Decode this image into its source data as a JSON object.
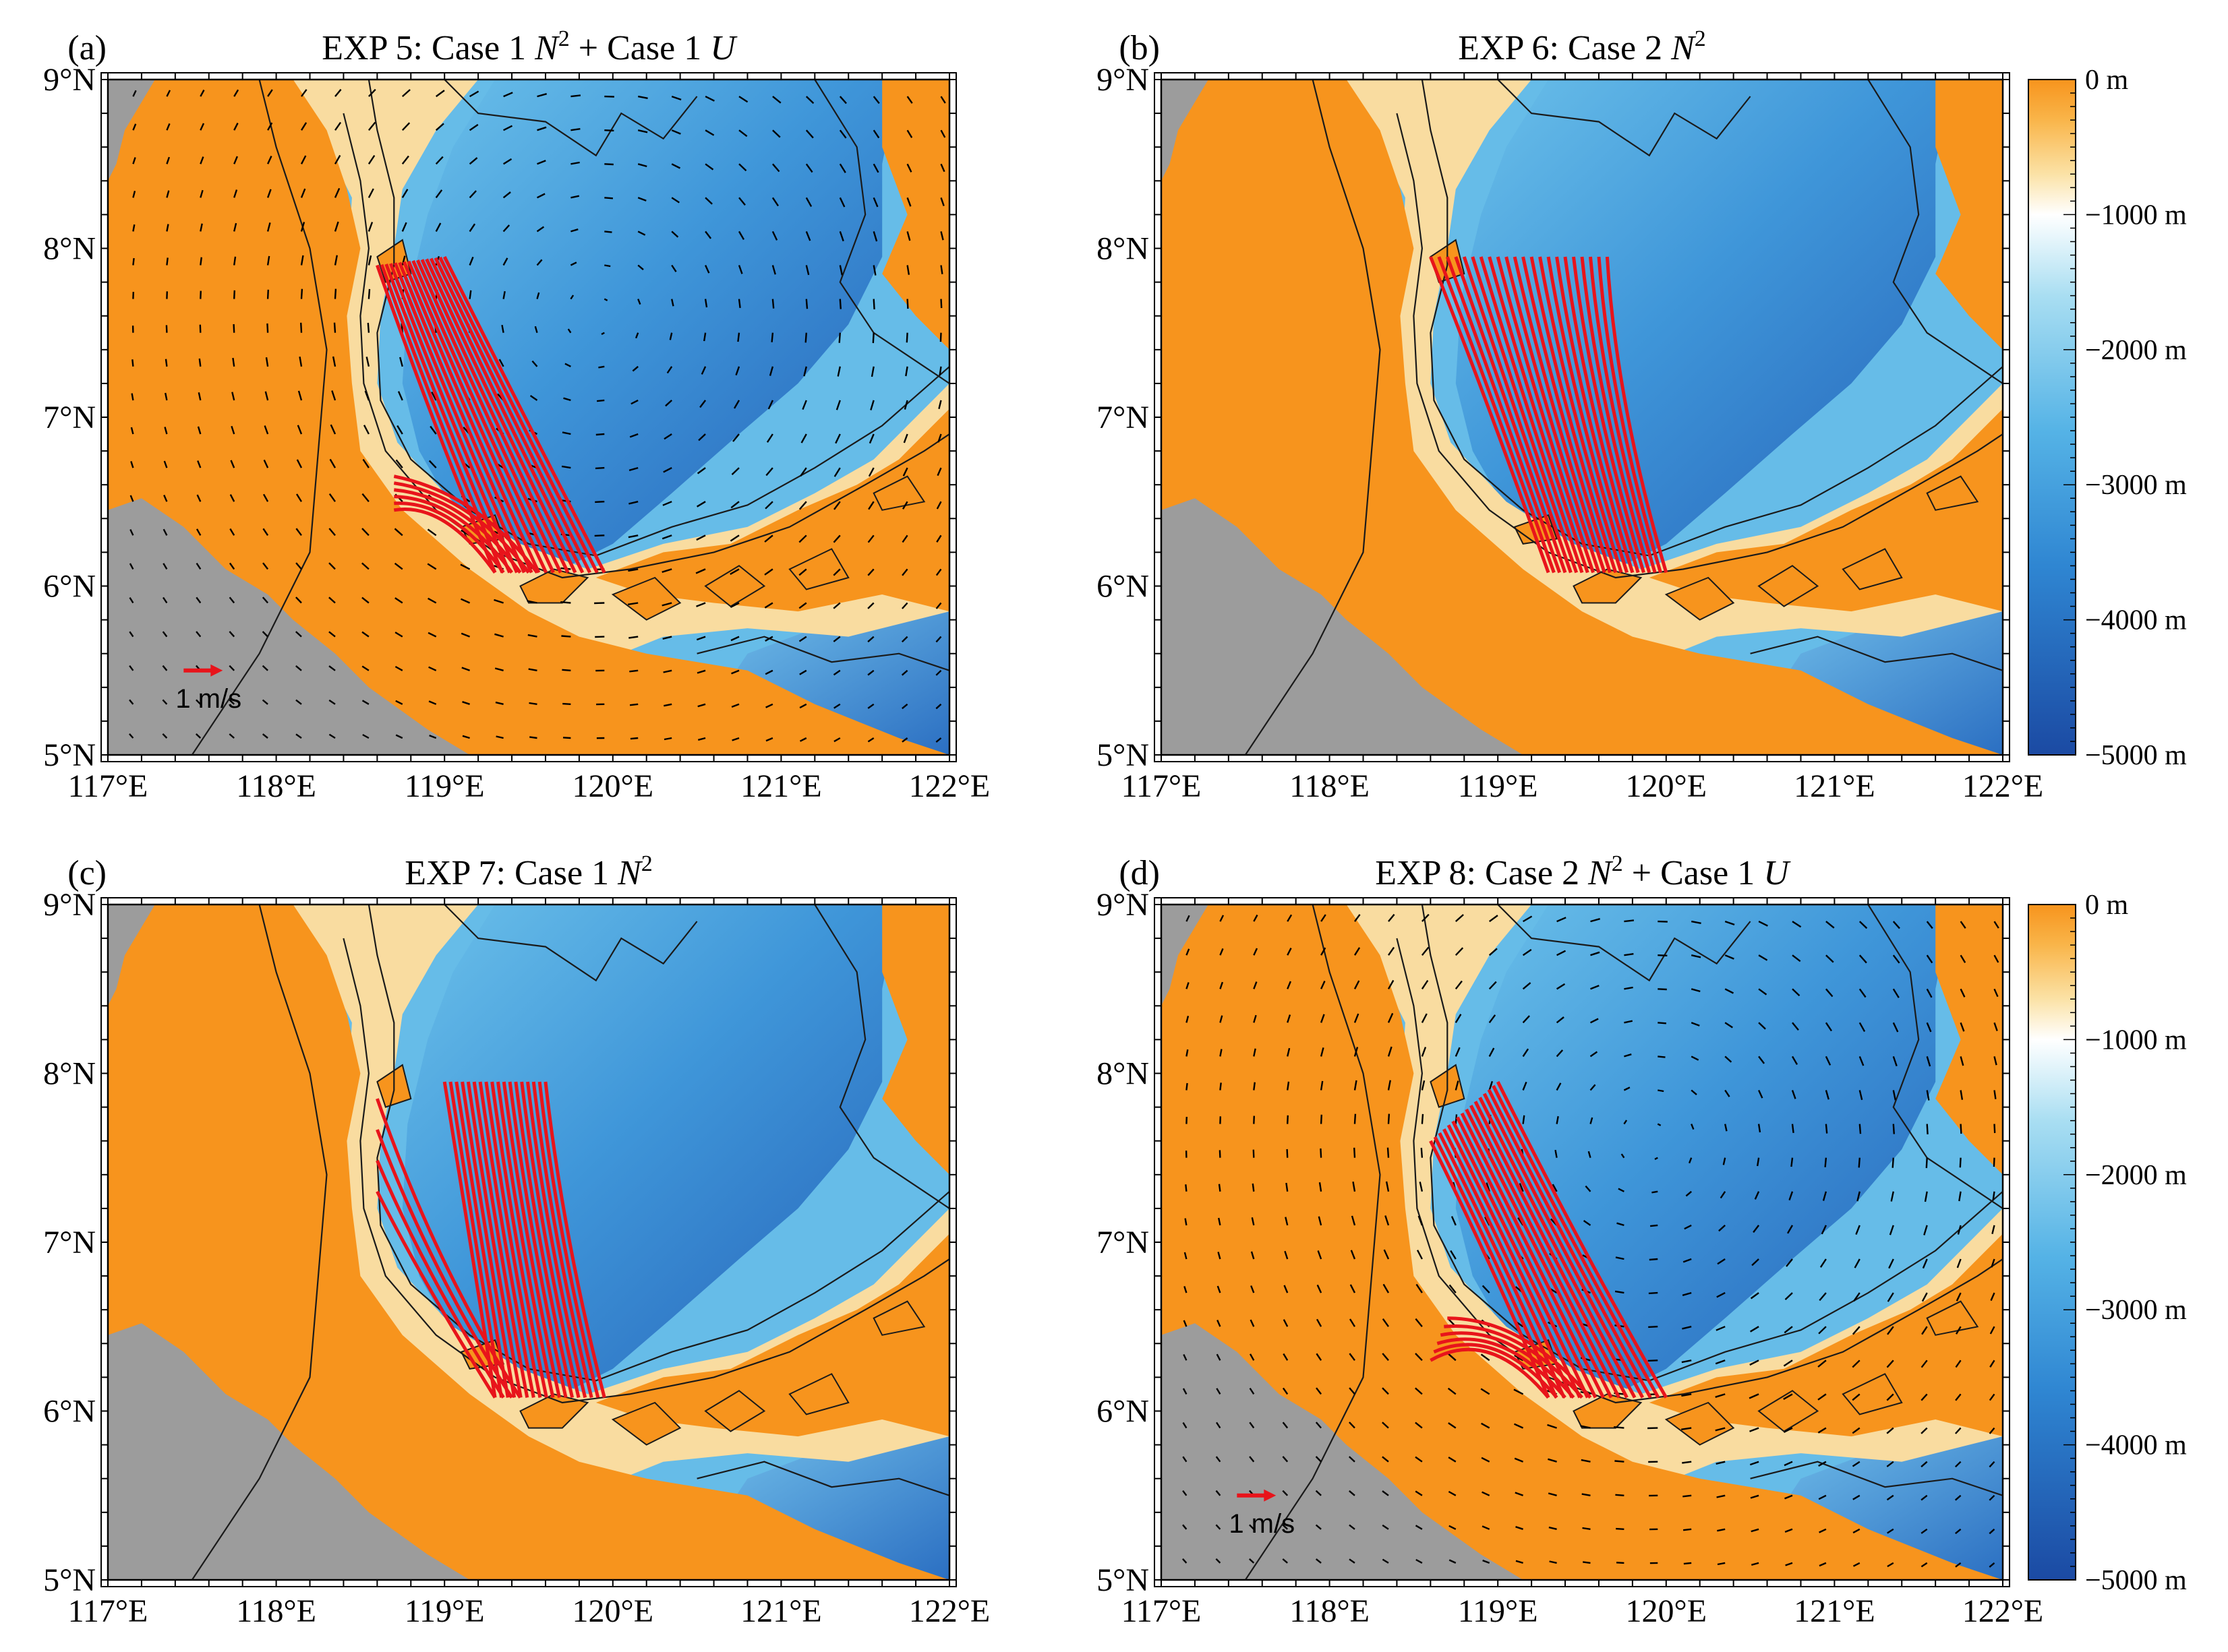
{
  "figure": {
    "panels": [
      {
        "id": "a",
        "label": "(a)",
        "title_prefix": "EXP 5: Case 1 ",
        "title_var1": "N",
        "title_sup": "2",
        "title_mid": " + Case 1 ",
        "title_var2": "U",
        "has_currents": true,
        "current_scale_label": "1 m/s",
        "rays": "set_a"
      },
      {
        "id": "b",
        "label": "(b)",
        "title_prefix": "EXP 6: Case 2 ",
        "title_var1": "N",
        "title_sup": "2",
        "title_mid": "",
        "title_var2": "",
        "has_currents": false,
        "current_scale_label": "",
        "rays": "set_b"
      },
      {
        "id": "c",
        "label": "(c)",
        "title_prefix": "EXP 7: Case 1 ",
        "title_var1": "N",
        "title_sup": "2",
        "title_mid": "",
        "title_var2": "",
        "has_currents": false,
        "current_scale_label": "",
        "rays": "set_c"
      },
      {
        "id": "d",
        "label": "(d)",
        "title_prefix": "EXP 8: Case 2 ",
        "title_var1": "N",
        "title_sup": "2",
        "title_mid": " + Case 1 ",
        "title_var2": "U",
        "has_currents": true,
        "current_scale_label": "1 m/s",
        "rays": "set_d"
      }
    ],
    "lon_ticks": [
      "117°E",
      "118°E",
      "119°E",
      "120°E",
      "121°E",
      "122°E"
    ],
    "lat_ticks": [
      "9°N",
      "8°N",
      "7°N",
      "6°N",
      "5°N"
    ],
    "lon_range": [
      117,
      122
    ],
    "lat_range": [
      5,
      9
    ],
    "colorbar": {
      "labels": [
        "0 m",
        "−1000 m",
        "−2000 m",
        "−3000 m",
        "−4000 m",
        "−5000 m"
      ],
      "range_m": [
        0,
        -5000
      ],
      "colors": [
        "#f7941d",
        "#f9c35c",
        "#fbe9b8",
        "#ffffff",
        "#8fd4ef",
        "#4aa7e0",
        "#2673c5",
        "#1c4fa8"
      ]
    },
    "colors": {
      "land": "#9c9c9c",
      "shelf": "#f7941d",
      "rays": "#e8141b",
      "contours": "#1a1a1a",
      "current_arrows": "#000000",
      "scale_arrow": "#e8141b"
    }
  }
}
